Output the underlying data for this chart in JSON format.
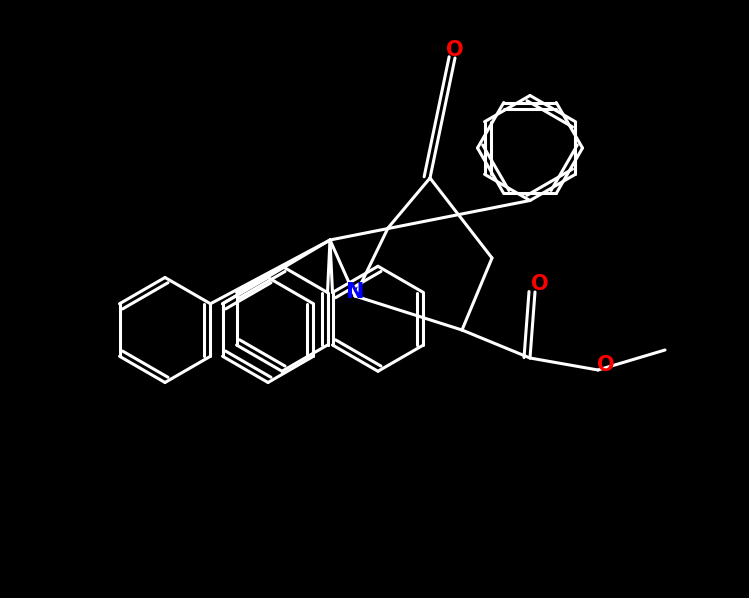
{
  "background_color": "#000000",
  "bond_color": "#ffffff",
  "atom_color_N": "#0000ff",
  "atom_color_O": "#ff0000",
  "lw": 2.2,
  "figw": 7.49,
  "figh": 5.98,
  "dpi": 100,
  "xlim": [
    0,
    14.98
  ],
  "ylim": [
    0,
    11.96
  ]
}
